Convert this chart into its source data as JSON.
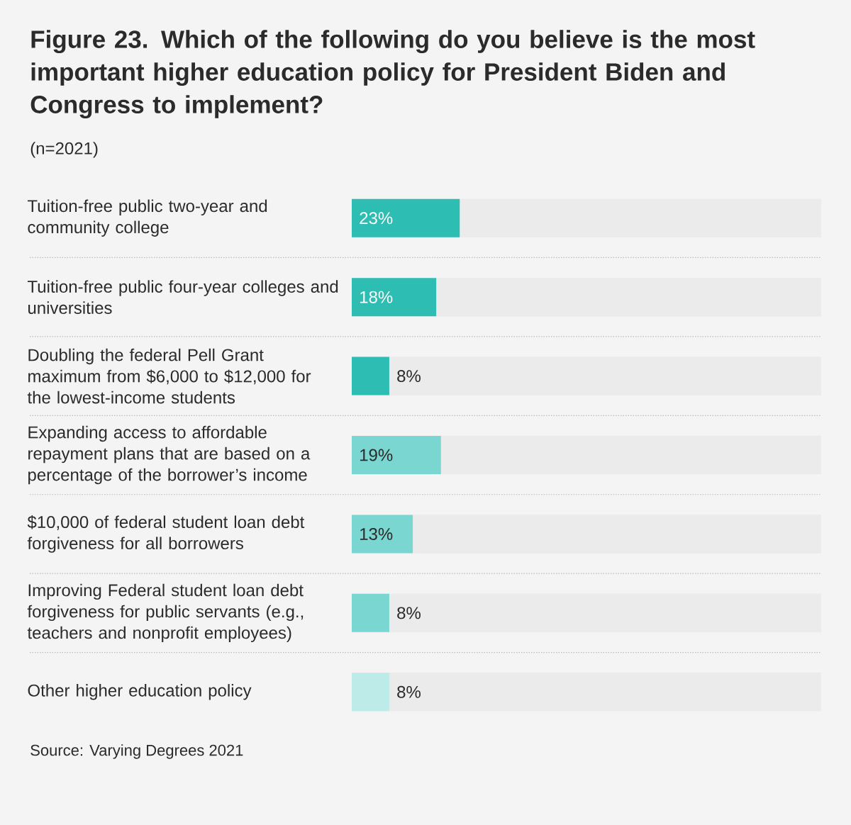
{
  "chart_data": {
    "type": "bar",
    "orientation": "horizontal",
    "title": "Figure 23. Which of the following do you believe is the most important higher education policy for President Biden and Congress to implement?",
    "subtitle": "(n=2021)",
    "categories": [
      "Tuition-free public two-year and community college",
      "Tuition-free public four-year colleges and universities",
      "Doubling the federal Pell Grant maximum from $6,000 to $12,000 for the lowest-income students",
      "Expanding access to affordable repayment plans that are based on a percentage of the borrower’s income",
      "$10,000 of federal student loan debt forgiveness for all borrowers",
      "Improving Federal student loan debt forgiveness for public servants (e.g., teachers and nonprofit employees)",
      "Other higher education policy"
    ],
    "values": [
      23,
      18,
      8,
      19,
      13,
      8,
      8
    ],
    "colors": [
      "#2ebdb3",
      "#2ebdb3",
      "#2ebdb3",
      "#7ad6d0",
      "#7ad6d0",
      "#7ad6d0",
      "#bdece8"
    ],
    "value_labels": [
      "23%",
      "18%",
      "8%",
      "19%",
      "13%",
      "8%",
      "8%"
    ],
    "xlim": [
      0,
      100
    ],
    "tick_labels": "y",
    "annotations": [
      "Source: Varying Degrees 2021"
    ]
  }
}
